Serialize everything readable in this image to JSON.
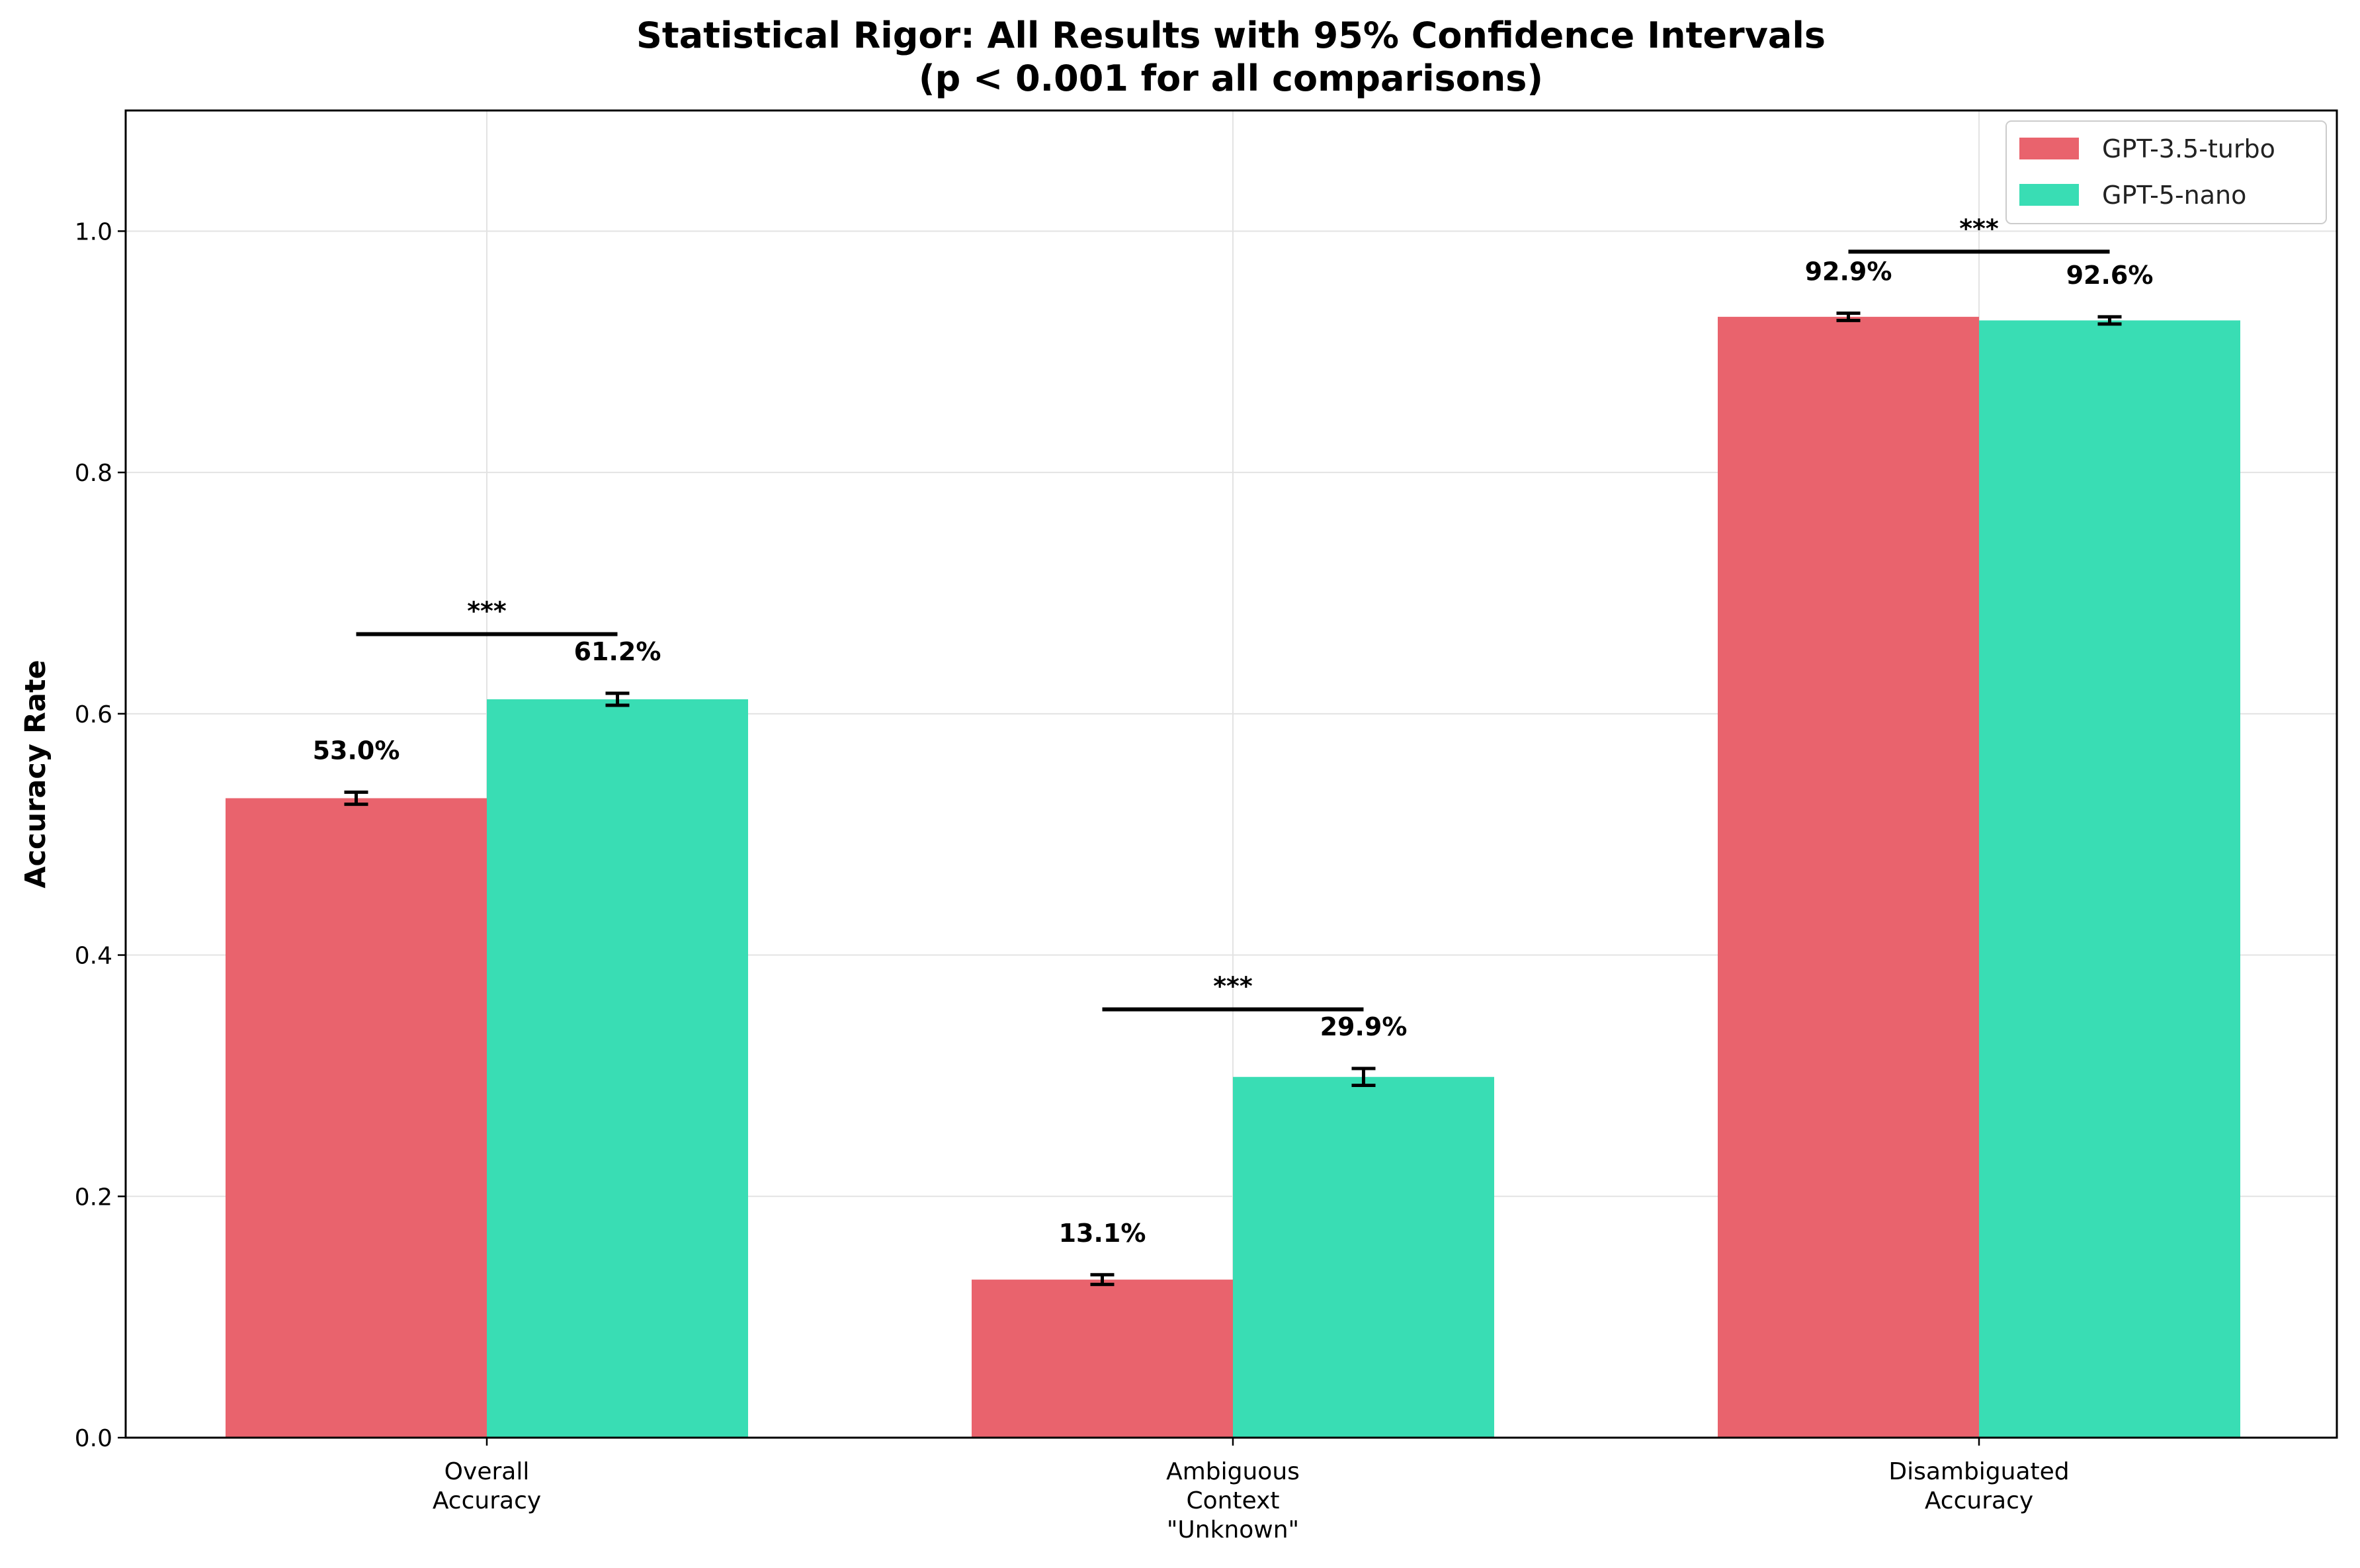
{
  "chart_data": {
    "type": "bar",
    "title_lines": [
      "Statistical Rigor: All Results with 95% Confidence Intervals",
      "(p < 0.001 for all comparisons)"
    ],
    "xlabel": "",
    "ylabel": "Accuracy Rate",
    "ylim": [
      0,
      1.1
    ],
    "yticks": [
      "0.0",
      "0.2",
      "0.4",
      "0.6",
      "0.8",
      "1.0"
    ],
    "grid": true,
    "legend_position": "top-right",
    "categories": [
      [
        "Overall",
        "Accuracy"
      ],
      [
        "Ambiguous",
        "Context",
        "\"Unknown\""
      ],
      [
        "Disambiguated",
        "Accuracy"
      ]
    ],
    "series": [
      {
        "name": "GPT-3.5-turbo",
        "color": "#e9636d",
        "values": [
          0.53,
          0.131,
          0.929
        ],
        "ci_halfwidth": [
          0.005,
          0.004,
          0.003
        ],
        "labels": [
          "53.0%",
          "13.1%",
          "92.9%"
        ]
      },
      {
        "name": "GPT-5-nano",
        "color": "#39ddb4",
        "values": [
          0.612,
          0.299,
          0.926
        ],
        "ci_halfwidth": [
          0.005,
          0.007,
          0.003
        ],
        "labels": [
          "61.2%",
          "29.9%",
          "92.6%"
        ]
      }
    ],
    "significance": [
      {
        "category": 0,
        "label": "***",
        "y": 0.666
      },
      {
        "category": 1,
        "label": "***",
        "y": 0.355
      },
      {
        "category": 2,
        "label": "***",
        "y": 0.983
      }
    ]
  }
}
